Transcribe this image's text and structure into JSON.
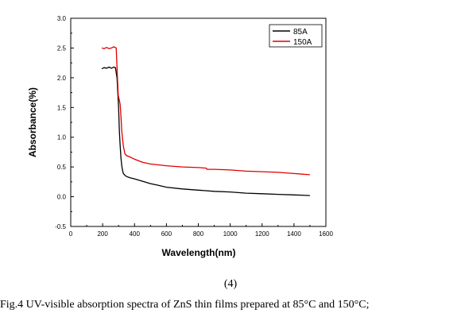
{
  "chart_data": {
    "type": "line",
    "xlabel": "Wavelength(nm)",
    "ylabel": "Absorbance(%)",
    "xlim": [
      0,
      1600
    ],
    "ylim": [
      -0.5,
      3.0
    ],
    "xticks": [
      0,
      200,
      400,
      600,
      800,
      1000,
      1200,
      1400,
      1600
    ],
    "xtick_labels": [
      "0",
      "200",
      "400",
      "600",
      "800",
      "1000",
      "1200",
      "1400",
      "1600"
    ],
    "yticks": [
      -0.5,
      0.0,
      0.5,
      1.0,
      1.5,
      2.0,
      2.5,
      3.0
    ],
    "ytick_labels": [
      "-0.5",
      "0.0",
      "0.5",
      "1.0",
      "1.5",
      "2.0",
      "2.5",
      "3.0"
    ],
    "grid": false,
    "legend_position": "top-right",
    "series": [
      {
        "name": "85A",
        "color": "#000000",
        "x": [
          195,
          210,
          225,
          240,
          255,
          270,
          280,
          290,
          300,
          305,
          310,
          315,
          320,
          325,
          330,
          340,
          350,
          370,
          400,
          450,
          500,
          550,
          600,
          700,
          800,
          900,
          1000,
          1100,
          1200,
          1300,
          1400,
          1500
        ],
        "y": [
          2.15,
          2.17,
          2.16,
          2.18,
          2.16,
          2.18,
          2.17,
          2.0,
          1.5,
          1.1,
          0.85,
          0.65,
          0.52,
          0.44,
          0.39,
          0.36,
          0.34,
          0.32,
          0.3,
          0.26,
          0.22,
          0.19,
          0.16,
          0.13,
          0.11,
          0.09,
          0.08,
          0.06,
          0.05,
          0.04,
          0.03,
          0.02
        ]
      },
      {
        "name": "150A",
        "color": "#e00000",
        "x": [
          195,
          210,
          225,
          240,
          255,
          270,
          285,
          292,
          298,
          305,
          310,
          315,
          320,
          330,
          340,
          350,
          370,
          400,
          450,
          500,
          600,
          700,
          800,
          850,
          855,
          900,
          1000,
          1100,
          1200,
          1300,
          1400,
          1500
        ],
        "y": [
          2.5,
          2.49,
          2.51,
          2.49,
          2.5,
          2.52,
          2.5,
          2.05,
          1.7,
          1.62,
          1.55,
          1.35,
          1.1,
          0.85,
          0.72,
          0.69,
          0.67,
          0.63,
          0.58,
          0.55,
          0.52,
          0.5,
          0.49,
          0.48,
          0.46,
          0.46,
          0.45,
          0.43,
          0.42,
          0.41,
          0.39,
          0.37
        ]
      }
    ]
  },
  "panel_label": "(4)",
  "caption": "Fig.4 UV-visible absorption spectra of ZnS thin films prepared at 85°C and 150°C;"
}
